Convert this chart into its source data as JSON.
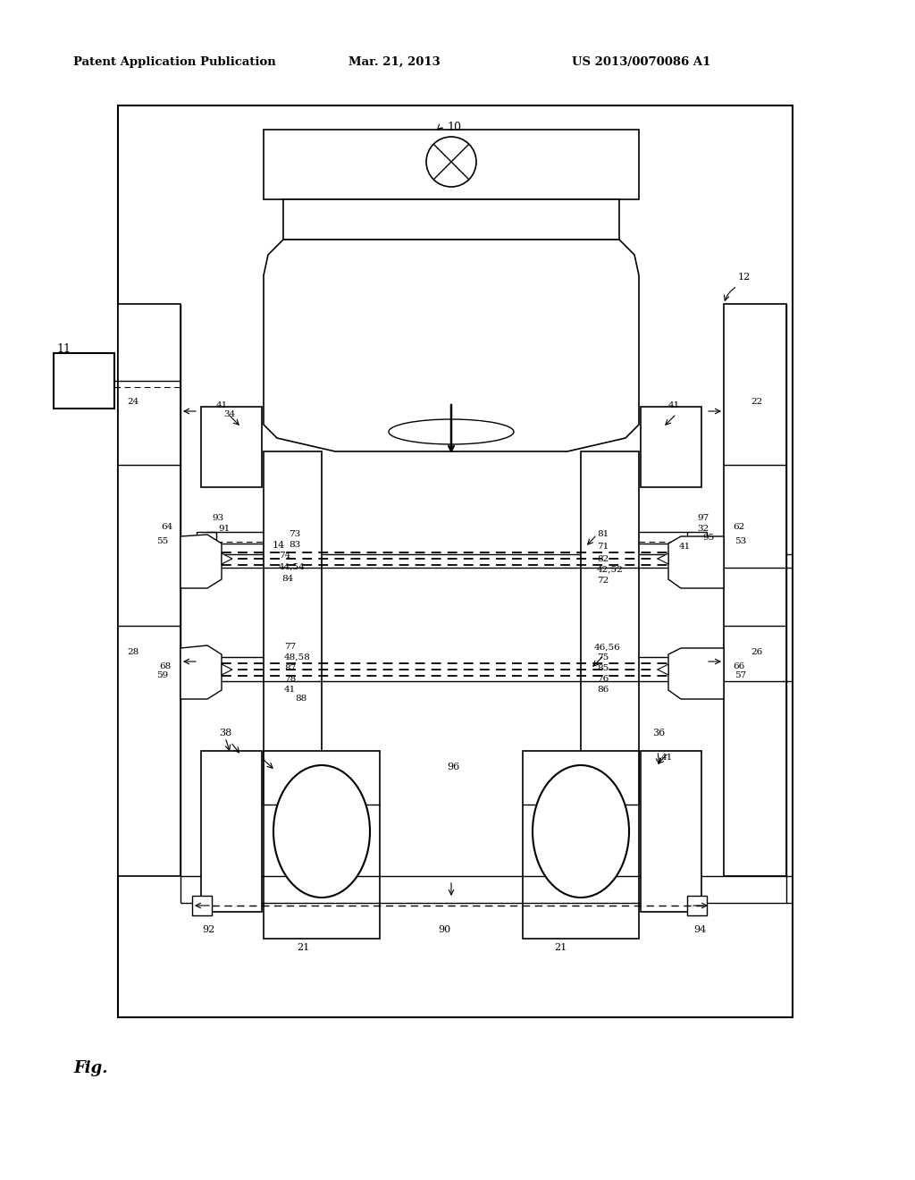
{
  "bg_color": "#ffffff",
  "header_left": "Patent Application Publication",
  "header_center": "Mar. 21, 2013",
  "header_right": "US 2013/0070086 A1",
  "footer_label": "Fig."
}
